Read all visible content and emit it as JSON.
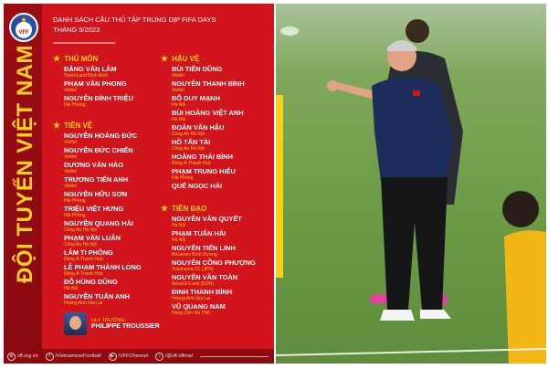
{
  "poster": {
    "logo_text": "VFF",
    "vertical_title": "ĐỘI TUYỂN VIỆT NAM",
    "title_line1": "DANH SÁCH CẦU THỦ TẬP TRUNG DỊP FIFA DAYS",
    "title_line2": "THÁNG 9/2023",
    "sections": [
      {
        "name": "THỦ MÔN",
        "players": [
          {
            "name": "ĐẶNG VĂN LÂM",
            "club": "TopenLand Bình Định"
          },
          {
            "name": "PHẠM VĂN PHONG",
            "club": "Viettel"
          },
          {
            "name": "NGUYỄN ĐÌNH TRIỆU",
            "club": "Hải Phòng"
          }
        ]
      },
      {
        "name": "TIỀN VỆ",
        "players": [
          {
            "name": "NGUYỄN HOÀNG ĐỨC",
            "club": "Viettel"
          },
          {
            "name": "NGUYỄN ĐỨC CHIẾN",
            "club": "Viettel"
          },
          {
            "name": "DƯƠNG VĂN HÀO",
            "club": "Viettel"
          },
          {
            "name": "TRƯƠNG TIẾN ANH",
            "club": "Viettel"
          },
          {
            "name": "NGUYỄN HỮU SƠN",
            "club": "Hải Phòng"
          },
          {
            "name": "TRIỆU VIỆT HƯNG",
            "club": "Hải Phòng"
          },
          {
            "name": "NGUYỄN QUANG HẢI",
            "club": "Công An Hà Nội"
          },
          {
            "name": "PHẠM VĂN LUÂN",
            "club": "Công An Hà Nội"
          },
          {
            "name": "LÂM TI PHÔNG",
            "club": "Đông Á Thanh Hoá"
          },
          {
            "name": "LÊ PHẠM THÀNH LONG",
            "club": "Đông Á Thanh Hoá"
          },
          {
            "name": "ĐỖ HÙNG DŨNG",
            "club": "Hà Nội"
          },
          {
            "name": "NGUYỄN TUẤN ANH",
            "club": "Hoàng Anh Gia Lai"
          }
        ]
      },
      {
        "name": "HẬU VỆ",
        "players": [
          {
            "name": "BÙI TIẾN DŨNG",
            "club": "Viettel"
          },
          {
            "name": "NGUYỄN THANH BÌNH",
            "club": "Viettel"
          },
          {
            "name": "ĐỖ DUY MẠNH",
            "club": "Hà Nội"
          },
          {
            "name": "BÙI HOÀNG VIỆT ANH",
            "club": "Hà Nội"
          },
          {
            "name": "ĐOÀN VĂN HẬU",
            "club": "Công An Hà Nội"
          },
          {
            "name": "HỒ TẤN TÀI",
            "club": "Công An Hà Nội"
          },
          {
            "name": "HOÀNG THÁI BÌNH",
            "club": "Đông Á Thanh Hoá"
          },
          {
            "name": "PHẠM TRUNG HIẾU",
            "club": "Hải Phòng"
          },
          {
            "name": "QUẾ NGỌC HẢI",
            "club": ""
          }
        ]
      },
      {
        "name": "TIỀN ĐẠO",
        "players": [
          {
            "name": "NGUYỄN VĂN QUYẾT",
            "club": "Hà Nội"
          },
          {
            "name": "PHẠM TUẤN HẢI",
            "club": "Hà Nội"
          },
          {
            "name": "NGUYỄN TIẾN LINH",
            "club": "Becamex Bình Dương"
          },
          {
            "name": "NGUYỄN CÔNG PHƯỢNG",
            "club": "Yokohama FC (JPN)"
          },
          {
            "name": "NGUYỄN VĂN TOÀN",
            "club": "Seoul E-Land (KOR)"
          },
          {
            "name": "ĐINH THANH BÌNH",
            "club": "Hoàng Anh Gia Lai"
          },
          {
            "name": "VŨ QUANG NAM",
            "club": "Hồng Lĩnh Hà Tĩnh"
          }
        ]
      }
    ],
    "coach": {
      "role": "HLV TRƯỞNG",
      "name": "PHILIPPE TROUSSIER"
    },
    "footer": [
      {
        "icon": "globe-icon",
        "glyph": "⊕",
        "text": "vff.org.vn"
      },
      {
        "icon": "facebook-icon",
        "glyph": "f",
        "text": "/VietnameseFootball"
      },
      {
        "icon": "youtube-icon",
        "glyph": "▶",
        "text": "/VFFChannel"
      },
      {
        "icon": "tiktok-icon",
        "glyph": "♪",
        "text": "/@vff.official"
      }
    ],
    "colors": {
      "panel": "#d2141c",
      "border": "#a50d14",
      "accent": "#ffd21a"
    }
  },
  "photo": {
    "subject": "coach-on-training-pitch"
  }
}
